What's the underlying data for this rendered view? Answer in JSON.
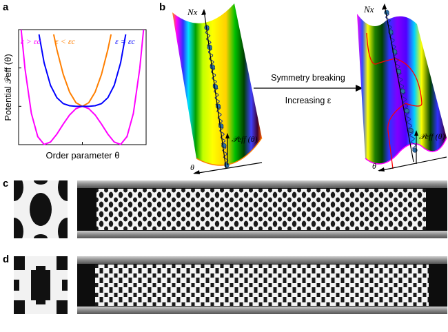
{
  "panels": {
    "a": {
      "label": "a"
    },
    "b": {
      "label": "b"
    },
    "c": {
      "label": "c"
    },
    "d": {
      "label": "d"
    }
  },
  "chart_data": {
    "type": "line",
    "xlabel": "Order parameter θ",
    "ylabel": "Potential 𝒫eff (θ)",
    "xlim": [
      -1,
      1
    ],
    "ylim": [
      0,
      1.2
    ],
    "x_ticks": [
      0
    ],
    "y_ticks": [
      0.4,
      0.8
    ],
    "grid": false,
    "series": [
      {
        "name": "ε > εc",
        "color": "#ff00ff",
        "x": [
          -0.96,
          -0.9,
          -0.8,
          -0.7,
          -0.6,
          -0.5,
          -0.4,
          -0.3,
          -0.2,
          -0.1,
          0,
          0.1,
          0.2,
          0.3,
          0.4,
          0.5,
          0.6,
          0.7,
          0.8,
          0.9,
          0.96
        ],
        "y": [
          1.2,
          0.793,
          0.326,
          0.084,
          0.002,
          0.027,
          0.11,
          0.214,
          0.31,
          0.376,
          0.4,
          0.376,
          0.31,
          0.214,
          0.11,
          0.027,
          0.002,
          0.084,
          0.326,
          0.793,
          1.2
        ]
      },
      {
        "name": "ε < εc",
        "color": "#ff7f00",
        "x": [
          -0.45,
          -0.4,
          -0.3,
          -0.2,
          -0.1,
          0,
          0.1,
          0.2,
          0.3,
          0.4,
          0.45
        ],
        "y": [
          1.15,
          0.992,
          0.733,
          0.548,
          0.437,
          0.4,
          0.437,
          0.548,
          0.733,
          0.992,
          1.15
        ]
      },
      {
        "name": "ε = εc",
        "color": "#0000ff",
        "x": [
          -0.68,
          -0.6,
          -0.5,
          -0.4,
          -0.3,
          -0.2,
          -0.1,
          0,
          0.1,
          0.2,
          0.3,
          0.4,
          0.5,
          0.6,
          0.68
        ],
        "y": [
          1.15,
          0.854,
          0.619,
          0.49,
          0.428,
          0.406,
          0.4,
          0.4,
          0.4,
          0.406,
          0.428,
          0.49,
          0.619,
          0.854,
          1.15
        ]
      }
    ]
  },
  "diagram": {
    "left_axis_top": "Nx",
    "left_axis_bottom": "θ",
    "left_potential": "𝒫eff (θ)",
    "right_axis_top": "Nx",
    "right_axis_bottom": "θ",
    "right_potential": "𝒫eff (θ)",
    "arrow_top": "Symmetry breaking",
    "arrow_bottom": "Increasing ε"
  }
}
